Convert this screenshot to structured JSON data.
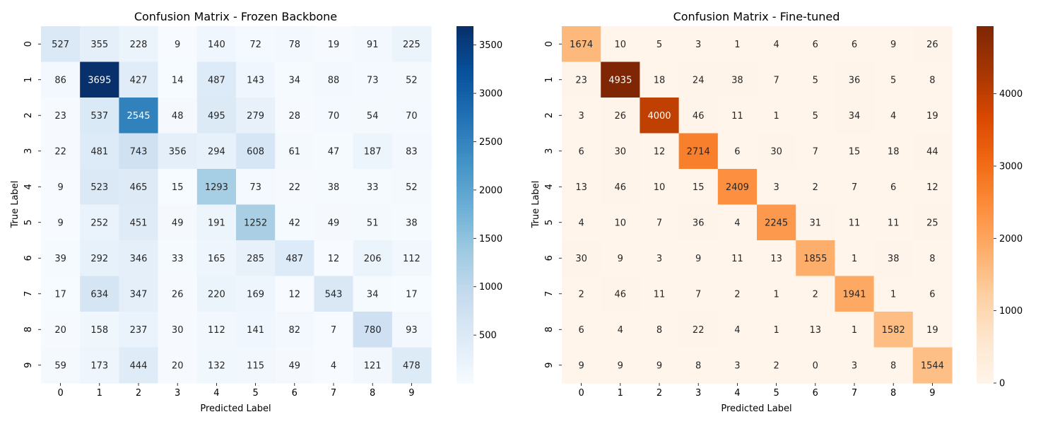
{
  "chart_data": [
    {
      "type": "heatmap",
      "title": "Confusion Matrix - Frozen Backbone",
      "xlabel": "Predicted Label",
      "ylabel": "True Label",
      "x_categories": [
        "0",
        "1",
        "2",
        "3",
        "4",
        "5",
        "6",
        "7",
        "8",
        "9"
      ],
      "y_categories": [
        "0",
        "1",
        "2",
        "3",
        "4",
        "5",
        "6",
        "7",
        "8",
        "9"
      ],
      "colormap": "Blues",
      "colorbar_range": [
        4,
        3695
      ],
      "colorbar_ticks": [
        500,
        1000,
        1500,
        2000,
        2500,
        3000,
        3500
      ],
      "values": [
        [
          527,
          355,
          228,
          9,
          140,
          72,
          78,
          19,
          91,
          225
        ],
        [
          86,
          3695,
          427,
          14,
          487,
          143,
          34,
          88,
          73,
          52
        ],
        [
          23,
          537,
          2545,
          48,
          495,
          279,
          28,
          70,
          54,
          70
        ],
        [
          22,
          481,
          743,
          356,
          294,
          608,
          61,
          47,
          187,
          83
        ],
        [
          9,
          523,
          465,
          15,
          1293,
          73,
          22,
          38,
          33,
          52
        ],
        [
          9,
          252,
          451,
          49,
          191,
          1252,
          42,
          49,
          51,
          38
        ],
        [
          39,
          292,
          346,
          33,
          165,
          285,
          487,
          12,
          206,
          112
        ],
        [
          17,
          634,
          347,
          26,
          220,
          169,
          12,
          543,
          34,
          17
        ],
        [
          20,
          158,
          237,
          30,
          112,
          141,
          82,
          7,
          780,
          93
        ],
        [
          59,
          173,
          444,
          20,
          132,
          115,
          49,
          4,
          121,
          478
        ]
      ]
    },
    {
      "type": "heatmap",
      "title": "Confusion Matrix - Fine-tuned",
      "xlabel": "Predicted Label",
      "ylabel": "True Label",
      "x_categories": [
        "0",
        "1",
        "2",
        "3",
        "4",
        "5",
        "6",
        "7",
        "8",
        "9"
      ],
      "y_categories": [
        "0",
        "1",
        "2",
        "3",
        "4",
        "5",
        "6",
        "7",
        "8",
        "9"
      ],
      "colormap": "Oranges",
      "colorbar_range": [
        0,
        4935
      ],
      "colorbar_ticks": [
        0,
        1000,
        2000,
        3000,
        4000
      ],
      "values": [
        [
          1674,
          10,
          5,
          3,
          1,
          4,
          6,
          6,
          9,
          26
        ],
        [
          23,
          4935,
          18,
          24,
          38,
          7,
          5,
          36,
          5,
          8
        ],
        [
          3,
          26,
          4000,
          46,
          11,
          1,
          5,
          34,
          4,
          19
        ],
        [
          6,
          30,
          12,
          2714,
          6,
          30,
          7,
          15,
          18,
          44
        ],
        [
          13,
          46,
          10,
          15,
          2409,
          3,
          2,
          7,
          6,
          12
        ],
        [
          4,
          10,
          7,
          36,
          4,
          2245,
          31,
          11,
          11,
          25
        ],
        [
          30,
          9,
          3,
          9,
          11,
          13,
          1855,
          1,
          38,
          8
        ],
        [
          2,
          46,
          11,
          7,
          2,
          1,
          2,
          1941,
          1,
          6
        ],
        [
          6,
          4,
          8,
          22,
          4,
          1,
          13,
          1,
          1582,
          19
        ],
        [
          9,
          9,
          9,
          8,
          3,
          2,
          0,
          3,
          8,
          1544
        ]
      ]
    }
  ]
}
